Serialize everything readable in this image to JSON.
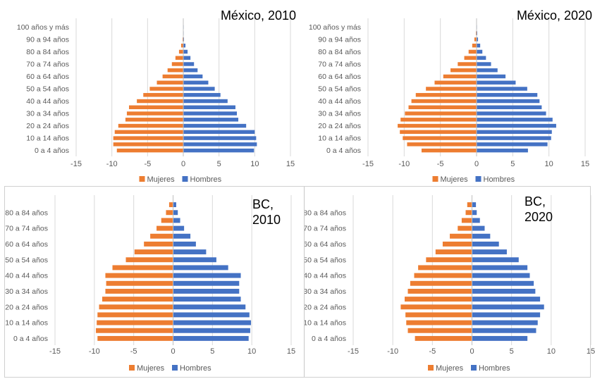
{
  "colors": {
    "mujeres": "#ED7D31",
    "hombres": "#4472C4",
    "grid": "#d9d9d9",
    "text": "#595959"
  },
  "chart_data": [
    {
      "type": "bar",
      "title": "México, 2010",
      "orientation": "horizontal",
      "categories": [
        "0 a 4 años",
        "5 a 9 años",
        "10 a 14 años",
        "15 a 19 años",
        "20 a 24 años",
        "25 a 29 años",
        "30 a 34 años",
        "35 a 39 años",
        "40 a 44 años",
        "45 a 49 años",
        "50 a 54 años",
        "55 a 59 años",
        "60 a 64 años",
        "65 a 69 años",
        "70 a 74 años",
        "75 a 79 años",
        "80 a 84 años",
        "85 a 89 años",
        "90 a 94 años",
        "95 a 99 años",
        "100 años y más"
      ],
      "category_labels_shown": [
        "0 a 4 años",
        "",
        "10 a 14 años",
        "",
        "20 a 24 años",
        "",
        "30 a 34 años",
        "",
        "40 a 44 años",
        "",
        "50 a 54 años",
        "",
        "60 a 64 años",
        "",
        "70 a 74 años",
        "",
        "80 a 84 años",
        "",
        "90 a 94 años",
        "",
        "100 años y más"
      ],
      "xticks": [
        "-15",
        "-10",
        "-5",
        "0",
        "5",
        "10",
        "15"
      ],
      "xlim": [
        -15,
        15
      ],
      "legend": [
        "Mujeres",
        "Hombres"
      ],
      "legend_position": "bottom",
      "series": [
        {
          "name": "Mujeres",
          "values": [
            -9.3,
            -9.8,
            -9.8,
            -9.6,
            -9.1,
            -8.1,
            -7.9,
            -7.6,
            -6.5,
            -5.6,
            -4.7,
            -3.7,
            -2.9,
            -2.2,
            -1.6,
            -1.1,
            -0.6,
            -0.3,
            -0.1,
            -0.05,
            -0.02
          ]
        },
        {
          "name": "Hombres",
          "values": [
            9.9,
            10.3,
            10.2,
            10.0,
            8.8,
            7.7,
            7.5,
            7.3,
            6.2,
            5.2,
            4.4,
            3.5,
            2.7,
            2.0,
            1.5,
            1.0,
            0.6,
            0.3,
            0.1,
            0.04,
            0.02
          ]
        }
      ]
    },
    {
      "type": "bar",
      "title": "México, 2020",
      "orientation": "horizontal",
      "categories": [
        "0 a 4 años",
        "5 a 9 años",
        "10 a 14 años",
        "15 a 19 años",
        "20 a 24 años",
        "25 a 29 años",
        "30 a 34 años",
        "35 a 39 años",
        "40 a 44 años",
        "45 a 49 años",
        "50 a 54 años",
        "55 a 59 años",
        "60 a 64 años",
        "65 a 69 años",
        "70 a 74 años",
        "75 a 79 años",
        "80 a 84 años",
        "85 a 89 años",
        "90 a 94 años",
        "95 a 99 años",
        "100 años y más"
      ],
      "category_labels_shown": [
        "0 a 4 años",
        "",
        "10 a 14 años",
        "",
        "20 a 24 años",
        "",
        "30 a 34 años",
        "",
        "40 a 44 años",
        "",
        "50 a 54 años",
        "",
        "60 a 64 años",
        "",
        "70 a 74 años",
        "",
        "80 a 84 años",
        "",
        "90 a 94 años",
        "",
        "100 años y más"
      ],
      "xticks": [
        "-15",
        "-10",
        "-5",
        "0",
        "5",
        "10",
        "15"
      ],
      "xlim": [
        -15,
        15
      ],
      "legend": [
        "Mujeres",
        "Hombres"
      ],
      "legend_position": "bottom",
      "series": [
        {
          "name": "Mujeres",
          "values": [
            -7.6,
            -9.6,
            -10.2,
            -10.6,
            -10.9,
            -10.5,
            -9.9,
            -9.4,
            -9.0,
            -8.4,
            -7.0,
            -5.8,
            -4.6,
            -3.6,
            -2.6,
            -1.7,
            -1.1,
            -0.6,
            -0.3,
            -0.1,
            -0.03
          ]
        },
        {
          "name": "Hombres",
          "values": [
            7.1,
            9.8,
            10.3,
            10.4,
            11.0,
            10.5,
            9.6,
            9.0,
            8.7,
            8.4,
            7.0,
            5.4,
            4.0,
            2.9,
            2.0,
            1.3,
            0.8,
            0.5,
            0.2,
            0.1,
            0.02
          ]
        }
      ]
    },
    {
      "type": "bar",
      "title": "BC, 2010",
      "orientation": "horizontal",
      "categories": [
        "0 a 4 años",
        "5 a 9 años",
        "10 a 14 años",
        "15 a 19 años",
        "20 a 24 años",
        "25 a 29 años",
        "30 a 34 años",
        "35 a 39 años",
        "40 a 44 años",
        "45 a 49 años",
        "50 a 54 años",
        "55 a 59 años",
        "60 a 64 años",
        "65 a 69 años",
        "70 a 74 años",
        "75 a 79 años",
        "80 a 84 años",
        "85 a 89 años"
      ],
      "category_labels_shown": [
        "0 a 4 años",
        "",
        "10 a 14 años",
        "",
        "20 a 24 años",
        "",
        "30 a 34 años",
        "",
        "40 a 44 años",
        "",
        "50 a 54 años",
        "",
        "60 a 64 años",
        "",
        "70 a 74 años",
        "",
        "80 a 84 años",
        ""
      ],
      "xticks": [
        "-15",
        "-10",
        "-5",
        "0",
        "5",
        "10",
        "15"
      ],
      "xlim": [
        -15,
        15
      ],
      "legend": [
        "Mujeres",
        "Hombres"
      ],
      "legend_position": "bottom",
      "series": [
        {
          "name": "Mujeres",
          "values": [
            -9.6,
            -9.8,
            -9.7,
            -9.6,
            -9.4,
            -9.0,
            -8.6,
            -8.5,
            -8.6,
            -7.7,
            -6.0,
            -4.9,
            -3.7,
            -2.9,
            -2.1,
            -1.5,
            -0.9,
            -0.5
          ]
        },
        {
          "name": "Hombres",
          "values": [
            9.6,
            9.8,
            9.9,
            9.7,
            9.2,
            8.6,
            8.4,
            8.4,
            8.6,
            7.0,
            5.5,
            4.2,
            2.9,
            2.2,
            1.4,
            0.9,
            0.6,
            0.4
          ]
        }
      ]
    },
    {
      "type": "bar",
      "title": "BC, 2020",
      "orientation": "horizontal",
      "categories": [
        "0 a 4 años",
        "5 a 9 años",
        "10 a 14 años",
        "15 a 19 años",
        "20 a 24 años",
        "25 a 29 años",
        "30 a 34 años",
        "35 a 39 años",
        "40 a 44 años",
        "45 a 49 años",
        "50 a 54 años",
        "55 a 59 años",
        "60 a 64 años",
        "65 a 69 años",
        "70 a 74 años",
        "75 a 79 años",
        "80 a 84 años",
        "85 a 89 años"
      ],
      "category_labels_shown": [
        "0 a 4 años",
        "",
        "10 a 14 años",
        "",
        "20 a 24 años",
        "",
        "30 a 34 años",
        "",
        "40 a 44 años",
        "",
        "50 a 54 años",
        "",
        "60 a 64 años",
        "",
        "70 a 74 años",
        "",
        "80 a 84 años",
        ""
      ],
      "xticks": [
        "-15",
        "-10",
        "-5",
        "0",
        "5",
        "10",
        "15"
      ],
      "xlim": [
        -15,
        15
      ],
      "legend": [
        "Mujeres",
        "Hombres"
      ],
      "legend_position": "bottom",
      "series": [
        {
          "name": "Mujeres",
          "values": [
            -7.2,
            -8.1,
            -8.3,
            -8.4,
            -9.0,
            -8.5,
            -8.1,
            -7.8,
            -7.3,
            -6.8,
            -5.8,
            -4.6,
            -3.7,
            -2.8,
            -1.8,
            -1.3,
            -0.8,
            -0.6
          ]
        },
        {
          "name": "Hombres",
          "values": [
            7.0,
            8.1,
            8.3,
            8.6,
            9.1,
            8.6,
            8.0,
            7.8,
            7.3,
            7.0,
            5.9,
            4.4,
            3.4,
            2.3,
            1.6,
            1.0,
            0.6,
            0.5
          ]
        }
      ]
    }
  ]
}
